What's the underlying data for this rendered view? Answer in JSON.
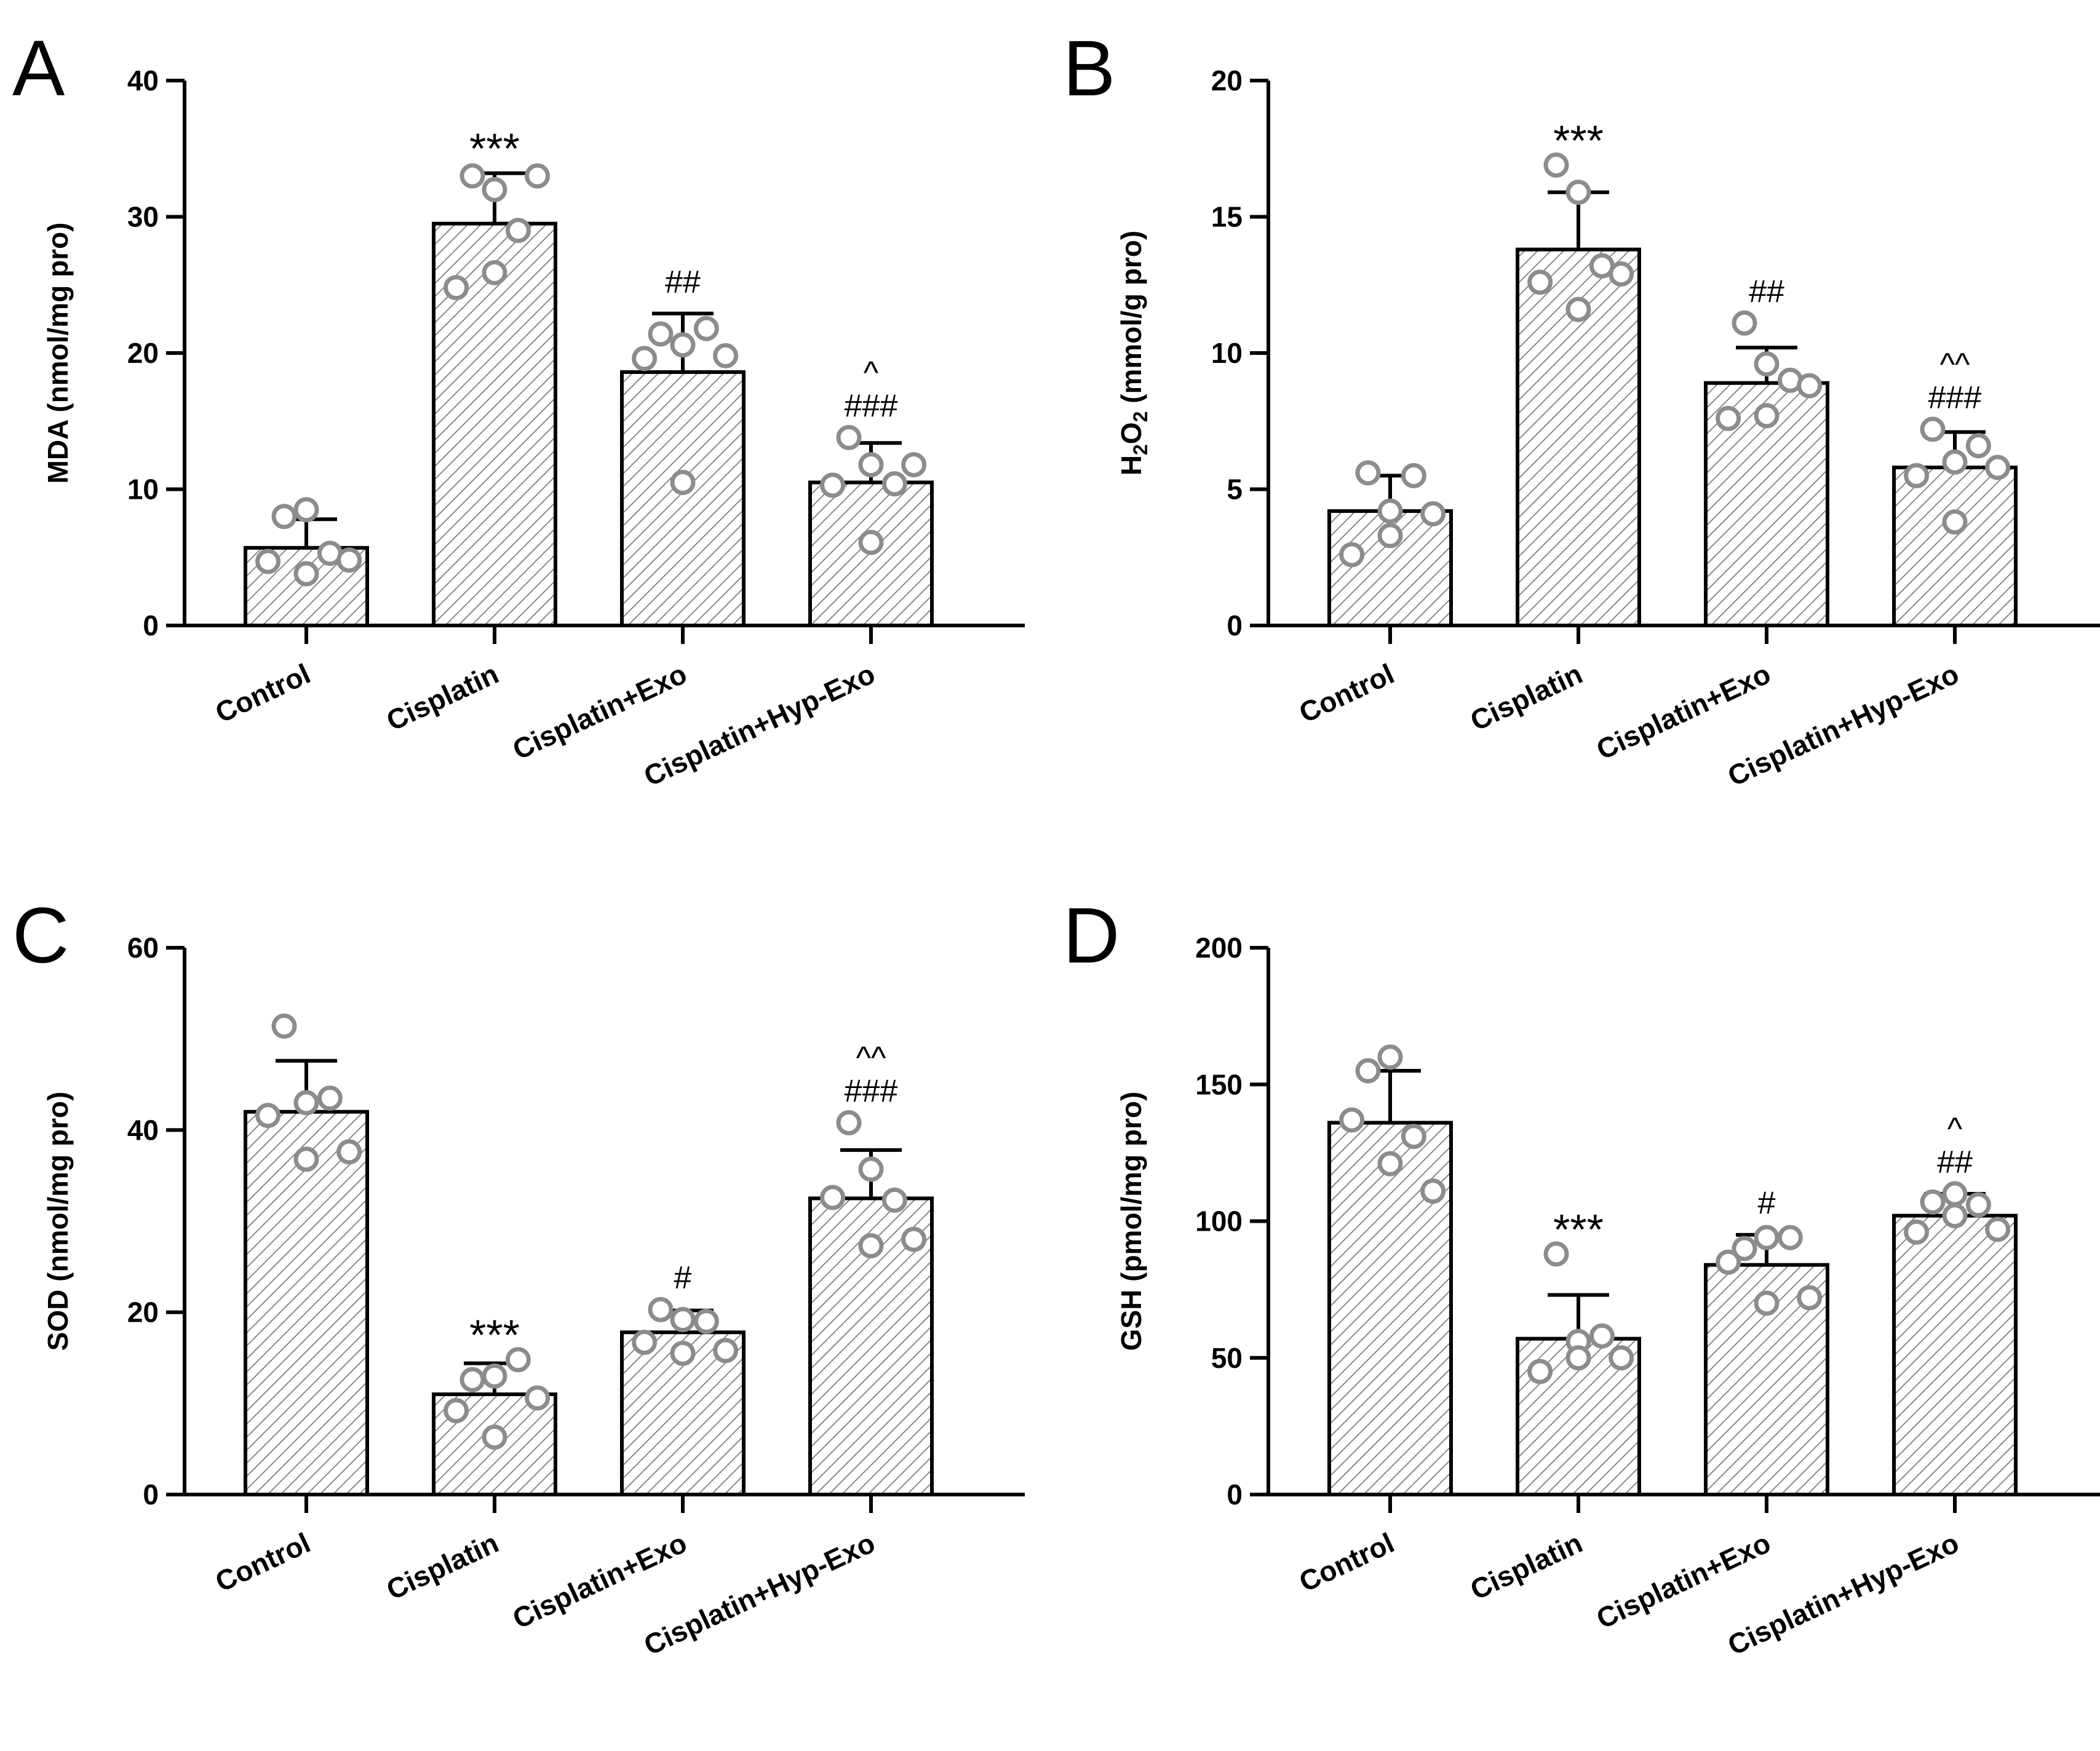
{
  "chart_data": [
    {
      "type": "bar",
      "panel": "A",
      "categories": [
        "Control",
        "Cisplatin",
        "Cisplatin+Exo",
        "Cisplatin+Hyp-Exo"
      ],
      "ylabel": "MDA (nmol/mg pro)",
      "ylabel_parts": [
        {
          "t": "MDA (nmol/mg pro)",
          "sub": false
        }
      ],
      "ylim": [
        0,
        40
      ],
      "yticks": [
        0,
        10,
        20,
        30,
        40
      ],
      "values": [
        5.7,
        29.5,
        18.6,
        10.5
      ],
      "errors": [
        2.1,
        3.7,
        4.3,
        2.9
      ],
      "points": [
        [
          8.0,
          8.5,
          5.3,
          4.7,
          3.8,
          4.8
        ],
        [
          33.0,
          32.0,
          29.0,
          24.8,
          25.9,
          33.0
        ],
        [
          21.4,
          20.6,
          21.8,
          19.6,
          10.5,
          19.8
        ],
        [
          13.8,
          11.8,
          10.4,
          10.3,
          6.1,
          11.8
        ]
      ],
      "annotations": [
        {
          "category": "Cisplatin",
          "lines": [
            "***"
          ]
        },
        {
          "category": "Cisplatin+Exo",
          "lines": [
            "##"
          ]
        },
        {
          "category": "Cisplatin+Hyp-Exo",
          "lines": [
            "^",
            "###"
          ]
        }
      ]
    },
    {
      "type": "bar",
      "panel": "B",
      "categories": [
        "Control",
        "Cisplatin",
        "Cisplatin+Exo",
        "Cisplatin+Hyp-Exo"
      ],
      "ylabel": "H2O2 (mmol/g pro)",
      "ylabel_parts": [
        {
          "t": "H",
          "sub": false
        },
        {
          "t": "2",
          "sub": true
        },
        {
          "t": "O",
          "sub": false
        },
        {
          "t": "2",
          "sub": true
        },
        {
          "t": " (mmol/g pro)",
          "sub": false
        }
      ],
      "ylim": [
        0,
        20
      ],
      "yticks": [
        0,
        5,
        10,
        15,
        20
      ],
      "values": [
        4.2,
        13.8,
        8.9,
        5.8
      ],
      "errors": [
        1.3,
        2.1,
        1.3,
        1.3
      ],
      "points": [
        [
          5.6,
          4.2,
          5.5,
          2.6,
          3.3,
          4.1
        ],
        [
          16.9,
          15.9,
          13.2,
          12.6,
          11.6,
          12.9
        ],
        [
          11.1,
          9.6,
          9.0,
          7.6,
          7.7,
          8.8
        ],
        [
          7.2,
          6.0,
          6.6,
          5.5,
          3.8,
          5.8
        ]
      ],
      "annotations": [
        {
          "category": "Cisplatin",
          "lines": [
            "***"
          ]
        },
        {
          "category": "Cisplatin+Exo",
          "lines": [
            "##"
          ]
        },
        {
          "category": "Cisplatin+Hyp-Exo",
          "lines": [
            "^^",
            "###"
          ]
        }
      ]
    },
    {
      "type": "bar",
      "panel": "C",
      "categories": [
        "Control",
        "Cisplatin",
        "Cisplatin+Exo",
        "Cisplatin+Hyp-Exo"
      ],
      "ylabel": "SOD (nmol/mg pro)",
      "ylabel_parts": [
        {
          "t": "SOD (nmol/mg pro)",
          "sub": false
        }
      ],
      "ylim": [
        0,
        60
      ],
      "yticks": [
        0,
        20,
        40,
        60
      ],
      "values": [
        42.0,
        11.0,
        17.8,
        32.5
      ],
      "errors": [
        5.6,
        3.4,
        2.4,
        5.3
      ],
      "points": [
        [
          51.4,
          43.0,
          43.5,
          41.6,
          36.8,
          37.6
        ],
        [
          12.6,
          13.0,
          14.8,
          9.2,
          6.3,
          10.6
        ],
        [
          20.3,
          19.2,
          19.0,
          16.7,
          15.5,
          15.8
        ],
        [
          40.8,
          35.7,
          32.3,
          32.6,
          27.3,
          28.0
        ]
      ],
      "annotations": [
        {
          "category": "Cisplatin",
          "lines": [
            "***"
          ]
        },
        {
          "category": "Cisplatin+Exo",
          "lines": [
            "#"
          ]
        },
        {
          "category": "Cisplatin+Hyp-Exo",
          "lines": [
            "^^",
            "###"
          ]
        }
      ]
    },
    {
      "type": "bar",
      "panel": "D",
      "categories": [
        "Control",
        "Cisplatin",
        "Cisplatin+Exo",
        "Cisplatin+Hyp-Exo"
      ],
      "ylabel": "GSH (pmol/mg pro)",
      "ylabel_parts": [
        {
          "t": "GSH (pmol/mg pro)",
          "sub": false
        }
      ],
      "ylim": [
        0,
        200
      ],
      "yticks": [
        0,
        50,
        100,
        150,
        200
      ],
      "values": [
        136,
        57,
        84,
        102
      ],
      "errors": [
        19,
        16,
        11,
        8
      ],
      "points": [
        [
          155,
          160,
          131,
          137,
          121,
          111
        ],
        [
          88,
          56,
          58,
          45,
          50,
          50
        ],
        [
          90,
          94,
          94,
          85,
          70,
          72
        ],
        [
          107,
          110,
          106,
          96,
          102,
          97
        ]
      ],
      "annotations": [
        {
          "category": "Cisplatin",
          "lines": [
            "***"
          ]
        },
        {
          "category": "Cisplatin+Exo",
          "lines": [
            "#"
          ]
        },
        {
          "category": "Cisplatin+Hyp-Exo",
          "lines": [
            "^",
            "##"
          ]
        }
      ]
    }
  ]
}
